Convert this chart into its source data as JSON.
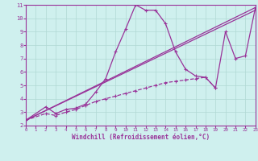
{
  "bg_color": "#cff0ee",
  "line_color": "#993399",
  "grid_color": "#b0d8d4",
  "xlabel": "Windchill (Refroidissement éolien,°C)",
  "xlim": [
    0,
    23
  ],
  "ylim": [
    2,
    11
  ],
  "xticks": [
    0,
    1,
    2,
    3,
    4,
    5,
    6,
    7,
    8,
    9,
    10,
    11,
    12,
    13,
    14,
    15,
    16,
    17,
    18,
    19,
    20,
    21,
    22,
    23
  ],
  "yticks": [
    2,
    3,
    4,
    5,
    6,
    7,
    8,
    9,
    10,
    11
  ],
  "line1_x": [
    0,
    2,
    3,
    4,
    5,
    6,
    7,
    8,
    9,
    10,
    11,
    12,
    13,
    14,
    15,
    16,
    17,
    18,
    19,
    20,
    21,
    22,
    23
  ],
  "line1_y": [
    2.4,
    3.4,
    2.9,
    3.2,
    3.3,
    3.6,
    4.5,
    5.5,
    7.5,
    9.2,
    11.0,
    10.6,
    10.6,
    9.6,
    7.5,
    6.2,
    5.7,
    5.6,
    4.8,
    9.0,
    7.0,
    7.2,
    10.8
  ],
  "line2_x": [
    0,
    23
  ],
  "line2_y": [
    2.4,
    10.8
  ],
  "line3_x": [
    0,
    23
  ],
  "line3_y": [
    2.4,
    10.6
  ],
  "line4_x": [
    0,
    2,
    3,
    4,
    5,
    6,
    7,
    8,
    9,
    10,
    11,
    12,
    13,
    14,
    15,
    16,
    17,
    18,
    19
  ],
  "line4_y": [
    2.4,
    2.9,
    2.75,
    3.0,
    3.2,
    3.5,
    3.8,
    4.0,
    4.2,
    4.4,
    4.6,
    4.8,
    5.0,
    5.2,
    5.3,
    5.4,
    5.5,
    5.6,
    4.8
  ],
  "marker": "+"
}
